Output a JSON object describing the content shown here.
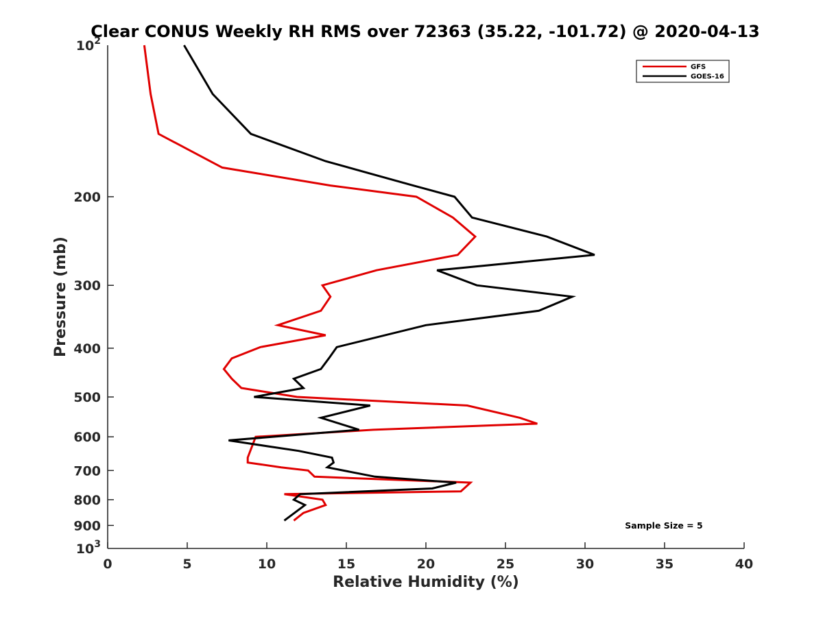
{
  "chart_data": {
    "type": "line",
    "title": "Clear CONUS Weekly RH RMS over 72363 (35.22, -101.72) @ 2020-04-13",
    "xlabel": "Relative Humidity (%)",
    "ylabel": "Pressure (mb)",
    "xlim": [
      0,
      40
    ],
    "ylim": [
      100,
      1000
    ],
    "y_scale": "log",
    "y_reversed": true,
    "grid": false,
    "legend_position": "top-right",
    "x_ticks": [
      {
        "value": 0,
        "label": "0"
      },
      {
        "value": 5,
        "label": "5"
      },
      {
        "value": 10,
        "label": "10"
      },
      {
        "value": 15,
        "label": "15"
      },
      {
        "value": 20,
        "label": "20"
      },
      {
        "value": 25,
        "label": "25"
      },
      {
        "value": 30,
        "label": "30"
      },
      {
        "value": 35,
        "label": "35"
      },
      {
        "value": 40,
        "label": "40"
      }
    ],
    "y_ticks": [
      {
        "value": 200,
        "label": "200"
      },
      {
        "value": 300,
        "label": "300"
      },
      {
        "value": 400,
        "label": "400"
      },
      {
        "value": 500,
        "label": "500"
      },
      {
        "value": 600,
        "label": "600"
      },
      {
        "value": 700,
        "label": "700"
      },
      {
        "value": 800,
        "label": "800"
      },
      {
        "value": 900,
        "label": "900"
      }
    ],
    "y_ticks_power": [
      {
        "value": 100,
        "base": "10",
        "exponent": "2"
      },
      {
        "value": 1000,
        "base": "10",
        "exponent": "3"
      }
    ],
    "series": [
      {
        "name": "GFS",
        "color": "#e00000",
        "points": [
          [
            2.3,
            100
          ],
          [
            2.7,
            125
          ],
          [
            3.2,
            150
          ],
          [
            7.2,
            175
          ],
          [
            14,
            190
          ],
          [
            19.4,
            200
          ],
          [
            21.7,
            220
          ],
          [
            23.1,
            240
          ],
          [
            22,
            261
          ],
          [
            16.9,
            280
          ],
          [
            13.5,
            300
          ],
          [
            14,
            316
          ],
          [
            13.4,
            337
          ],
          [
            10.7,
            360
          ],
          [
            13.7,
            377
          ],
          [
            9.6,
            398
          ],
          [
            7.8,
            419
          ],
          [
            7.3,
            440
          ],
          [
            7.8,
            460
          ],
          [
            8.4,
            480
          ],
          [
            11.9,
            500
          ],
          [
            22.6,
            520
          ],
          [
            25.9,
            550
          ],
          [
            27,
            565
          ],
          [
            16.7,
            581
          ],
          [
            9.3,
            600
          ],
          [
            8.8,
            660
          ],
          [
            8.8,
            675
          ],
          [
            10.9,
            690
          ],
          [
            12.6,
            700
          ],
          [
            13,
            720
          ],
          [
            22.8,
            740
          ],
          [
            22.2,
            770
          ],
          [
            11.1,
            780
          ],
          [
            13.5,
            800
          ],
          [
            13.7,
            820
          ],
          [
            12.3,
            850
          ],
          [
            11.7,
            880
          ]
        ]
      },
      {
        "name": "GOES-16",
        "color": "#000000",
        "points": [
          [
            4.8,
            100
          ],
          [
            6.6,
            125
          ],
          [
            9,
            150
          ],
          [
            13.7,
            170
          ],
          [
            19.2,
            190
          ],
          [
            21.8,
            200
          ],
          [
            22.9,
            220
          ],
          [
            27.6,
            240
          ],
          [
            30.6,
            261
          ],
          [
            20.7,
            280
          ],
          [
            23.2,
            300
          ],
          [
            29.2,
            316
          ],
          [
            27.1,
            337
          ],
          [
            20,
            360
          ],
          [
            14.4,
            398
          ],
          [
            13.9,
            419
          ],
          [
            13.4,
            440
          ],
          [
            11.7,
            460
          ],
          [
            12.3,
            480
          ],
          [
            9.2,
            500
          ],
          [
            16.5,
            520
          ],
          [
            13.4,
            550
          ],
          [
            15.8,
            581
          ],
          [
            7.6,
            610
          ],
          [
            12,
            640
          ],
          [
            14.1,
            660
          ],
          [
            14.2,
            675
          ],
          [
            13.8,
            690
          ],
          [
            16.8,
            720
          ],
          [
            21.9,
            740
          ],
          [
            20.4,
            760
          ],
          [
            12.1,
            780
          ],
          [
            11.7,
            800
          ],
          [
            12.4,
            820
          ],
          [
            11.1,
            880
          ]
        ]
      }
    ],
    "annotations": [
      "Sample Size = 5"
    ]
  }
}
